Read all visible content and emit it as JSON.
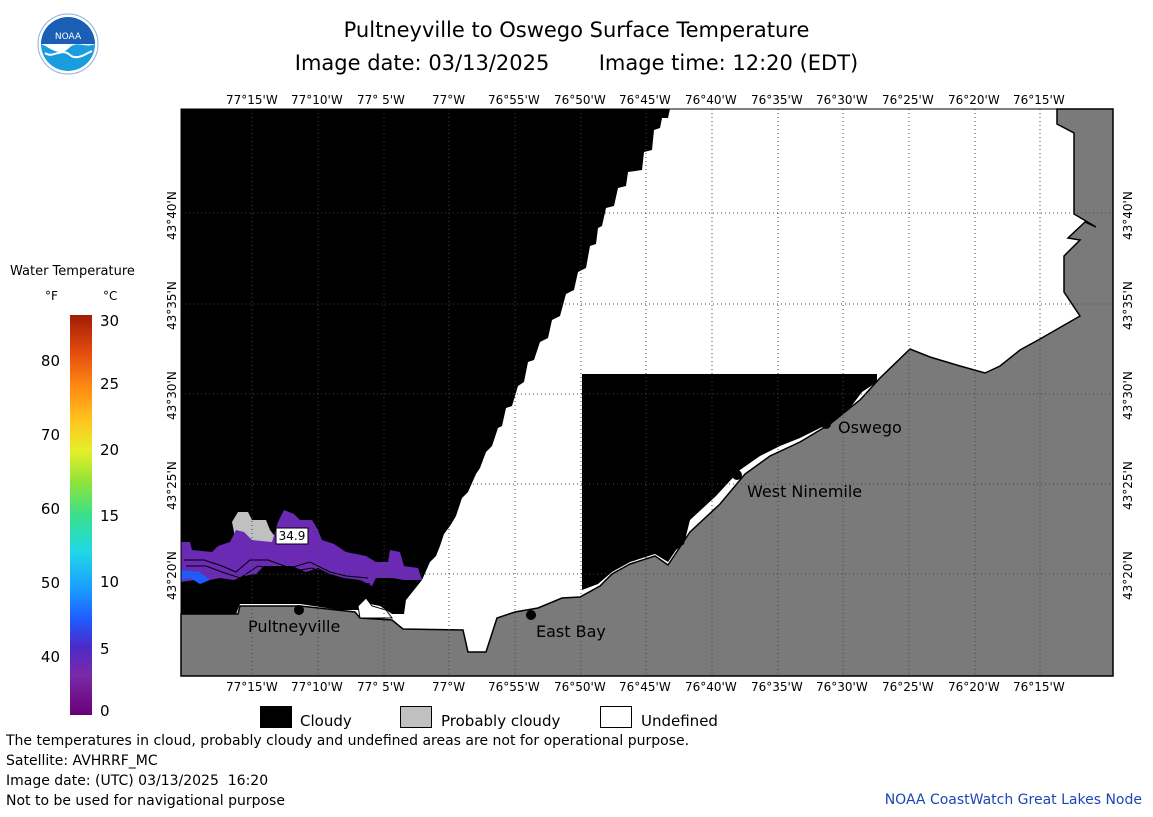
{
  "title": "Pultneyville to Oswego Surface Temperature",
  "image_date_label": "Image date: 03/13/2025",
  "image_time_label": "Image time: 12:20 (EDT)",
  "logo": {
    "icon": "noaa-logo-icon",
    "text": "NOAA"
  },
  "longitude_labels": [
    "77°15'W",
    "77°10'W",
    "77° 5'W",
    "77°W",
    "76°55'W",
    "76°50'W",
    "76°45'W",
    "76°40'W",
    "76°35'W",
    "76°30'W",
    "76°25'W",
    "76°20'W",
    "76°15'W"
  ],
  "latitude_labels": [
    "43°40'N",
    "43°35'N",
    "43°30'N",
    "43°25'N",
    "43°20'N"
  ],
  "places": [
    {
      "name": "Oswego"
    },
    {
      "name": "West Ninemile"
    },
    {
      "name": "East Bay"
    },
    {
      "name": "Pultneyville"
    }
  ],
  "temperature_readout": "34.9",
  "legend": {
    "title": "Water Temperature",
    "unit_f": "°F",
    "unit_c": "°C",
    "ticks_f": [
      "80",
      "70",
      "60",
      "50",
      "40"
    ],
    "ticks_c": [
      "30",
      "25",
      "20",
      "15",
      "10",
      "5",
      "0"
    ],
    "colors": {
      "cloudy": "#000000",
      "probably_cloudy": "#c0c0c0",
      "undefined": "#ffffff",
      "land": "#7a7a7a"
    },
    "categories": [
      "Cloudy",
      "Probably cloudy",
      "Undefined"
    ]
  },
  "notes": {
    "disclaimer": "The temperatures in cloud, probably cloudy and undefined areas are not for operational purpose.",
    "satellite": "Satellite: AVHRRF_MC",
    "utc_date": "Image date: (UTC) 03/13/2025  16:20",
    "navigation": "Not to be used for navigational purpose"
  },
  "credit": "NOAA CoastWatch Great Lakes Node"
}
